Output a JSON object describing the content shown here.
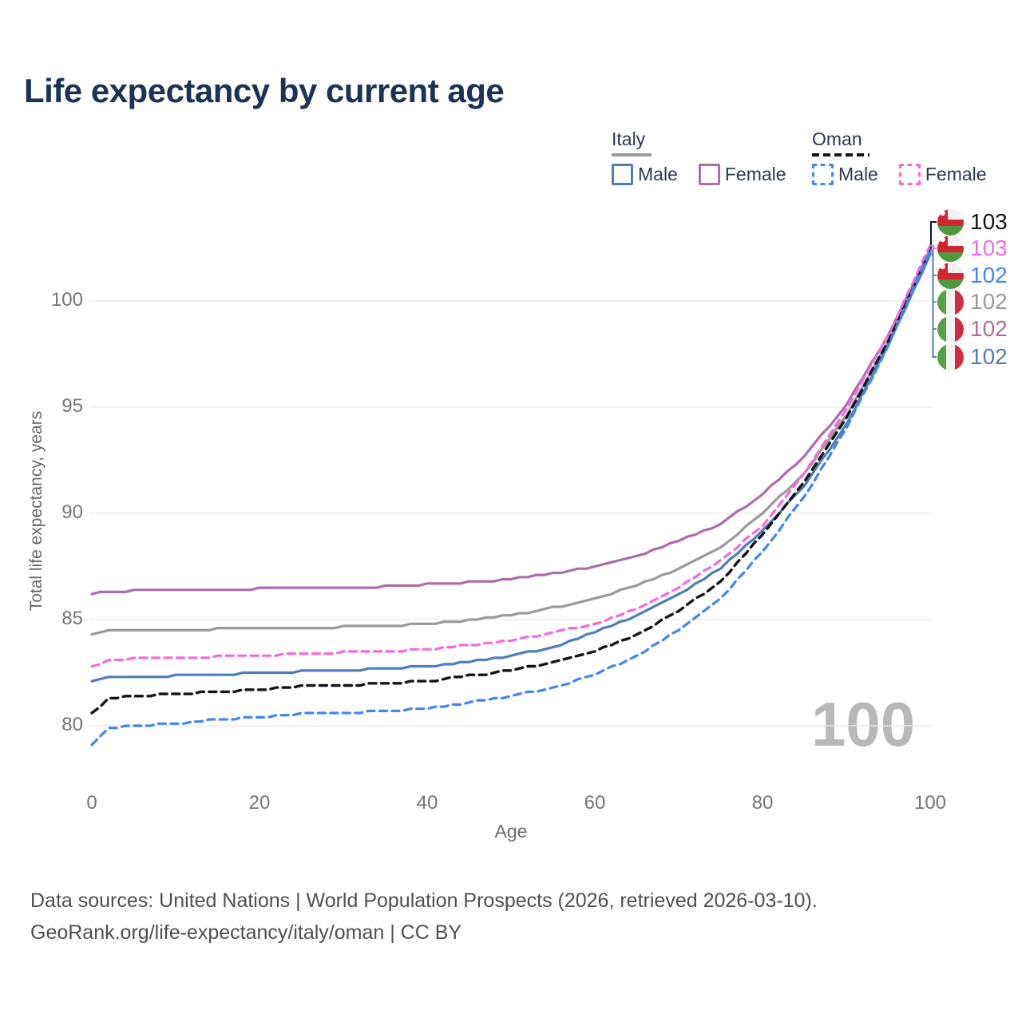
{
  "title": "Life expectancy by current age",
  "watermark": "100",
  "legend": {
    "groups": [
      {
        "name": "Italy",
        "underline": "solid",
        "items": [
          {
            "label": "Male",
            "color": "#4d7eb8",
            "dashed": false
          },
          {
            "label": "Female",
            "color": "#ad6cad",
            "dashed": false
          }
        ]
      },
      {
        "name": "Oman",
        "underline": "dashed",
        "items": [
          {
            "label": "Male",
            "color": "#3f86f2",
            "dashed": true
          },
          {
            "label": "Female",
            "color": "#f768df",
            "dashed": true
          }
        ]
      }
    ]
  },
  "footer": {
    "line1": "Data sources: United Nations | World Population Prospects (2026, retrieved 2026-03-10).",
    "line2": "GeoRank.org/life-expectancy/italy/oman | CC BY"
  },
  "chart_data": {
    "type": "line",
    "title": "Life expectancy by current age",
    "xlabel": "Age",
    "ylabel": "Total life expectancy, years",
    "xlim": [
      0,
      100
    ],
    "ylim": [
      78.5,
      103.5
    ],
    "xticks": [
      0,
      20,
      40,
      60,
      80,
      100
    ],
    "yticks": [
      80,
      85,
      90,
      95,
      100
    ],
    "grid": "horizontal",
    "x": [
      0,
      2,
      5,
      10,
      15,
      20,
      25,
      30,
      35,
      40,
      45,
      50,
      55,
      60,
      65,
      70,
      75,
      80,
      85,
      90,
      95,
      100
    ],
    "series": [
      {
        "key": "italy_total",
        "name": "Italy — Both sexes",
        "color": "#9a9a9a",
        "dashed": false,
        "values": [
          84.3,
          84.45,
          84.5,
          84.5,
          84.55,
          84.55,
          84.6,
          84.65,
          84.7,
          84.8,
          84.95,
          85.2,
          85.55,
          86.0,
          86.6,
          87.4,
          88.4,
          90.0,
          91.9,
          94.6,
          98.1,
          102.3
        ]
      },
      {
        "key": "italy_female",
        "name": "Italy — Female",
        "color": "#ad6cad",
        "dashed": false,
        "values": [
          86.2,
          86.3,
          86.35,
          86.4,
          86.4,
          86.45,
          86.5,
          86.5,
          86.55,
          86.65,
          86.75,
          86.9,
          87.15,
          87.5,
          88.0,
          88.7,
          89.5,
          90.9,
          92.7,
          95.1,
          98.4,
          102.4
        ]
      },
      {
        "key": "italy_male",
        "name": "Italy — Male",
        "color": "#4d7eb8",
        "dashed": false,
        "values": [
          82.1,
          82.3,
          82.3,
          82.35,
          82.4,
          82.5,
          82.55,
          82.6,
          82.7,
          82.8,
          83.0,
          83.3,
          83.7,
          84.4,
          85.2,
          86.2,
          87.4,
          89.2,
          91.3,
          94.2,
          97.9,
          102.2
        ]
      },
      {
        "key": "oman_total",
        "name": "Oman — Both sexes",
        "color": "#141414",
        "dashed": true,
        "values": [
          80.6,
          81.3,
          81.4,
          81.5,
          81.6,
          81.7,
          81.85,
          81.9,
          82.0,
          82.1,
          82.35,
          82.6,
          83.0,
          83.5,
          84.3,
          85.4,
          86.8,
          89.0,
          91.5,
          94.5,
          98.1,
          102.5
        ]
      },
      {
        "key": "oman_female",
        "name": "Oman — Female",
        "color": "#f768df",
        "dashed": true,
        "values": [
          82.8,
          83.1,
          83.15,
          83.2,
          83.25,
          83.3,
          83.4,
          83.45,
          83.5,
          83.6,
          83.8,
          84.0,
          84.4,
          84.8,
          85.5,
          86.5,
          87.8,
          89.4,
          91.9,
          94.9,
          98.4,
          102.6
        ]
      },
      {
        "key": "oman_male",
        "name": "Oman — Male",
        "color": "#3f86f2",
        "dashed": true,
        "values": [
          79.1,
          79.9,
          80.0,
          80.1,
          80.3,
          80.4,
          80.55,
          80.6,
          80.7,
          80.8,
          81.1,
          81.4,
          81.8,
          82.4,
          83.3,
          84.5,
          86.0,
          88.2,
          90.8,
          94.0,
          97.9,
          102.4
        ]
      }
    ],
    "end_labels": [
      {
        "key": "oman_total",
        "flag": "oman",
        "value": "103",
        "color": "#141414"
      },
      {
        "key": "oman_female",
        "flag": "oman",
        "value": "103",
        "color": "#f768df"
      },
      {
        "key": "oman_male",
        "flag": "oman",
        "value": "102",
        "color": "#3f86f2"
      },
      {
        "key": "italy_total",
        "flag": "italy",
        "value": "102",
        "color": "#9a9a9a"
      },
      {
        "key": "italy_female",
        "flag": "italy",
        "value": "102",
        "color": "#ad6cad"
      },
      {
        "key": "italy_male",
        "flag": "italy",
        "value": "102",
        "color": "#4d7eb8"
      }
    ]
  }
}
